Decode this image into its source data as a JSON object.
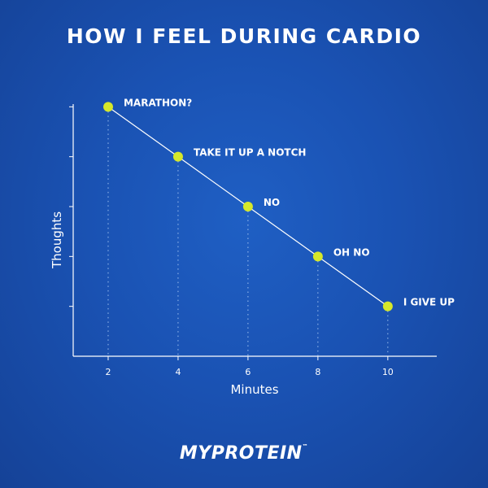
{
  "poster": {
    "title": "HOW I FEEL DURING CARDIO",
    "logo_text": "MYPROTEIN",
    "logo_mark": "™"
  },
  "colors": {
    "background": "#1a52b3",
    "point": "#d6e82a",
    "line": "#ffffff",
    "text": "#ffffff"
  },
  "chart_data": {
    "type": "line",
    "title": "HOW I FEEL DURING CARDIO",
    "xlabel": "Minutes",
    "ylabel": "Thoughts",
    "x_ticks": [
      2,
      4,
      6,
      8,
      10
    ],
    "xlim": [
      1,
      11.4
    ],
    "ylim": [
      0,
      6
    ],
    "y_ticks_labeled": false,
    "grid": false,
    "drop_lines": true,
    "points": [
      {
        "x": 2,
        "y": 5,
        "label": "MARATHON?"
      },
      {
        "x": 4,
        "y": 4,
        "label": "TAKE IT UP A NOTCH"
      },
      {
        "x": 6,
        "y": 3,
        "label": "NO"
      },
      {
        "x": 8,
        "y": 2,
        "label": "OH NO"
      },
      {
        "x": 10,
        "y": 1,
        "label": "I GIVE UP"
      }
    ]
  }
}
